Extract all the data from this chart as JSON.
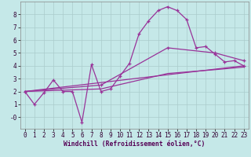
{
  "xlabel": "Windchill (Refroidissement éolien,°C)",
  "background_color": "#c5e8e8",
  "grid_color": "#aacccc",
  "line_color": "#993399",
  "x_ticks": [
    0,
    1,
    2,
    3,
    4,
    5,
    6,
    7,
    8,
    9,
    10,
    11,
    12,
    13,
    14,
    15,
    16,
    17,
    18,
    19,
    20,
    21,
    22,
    23
  ],
  "y_ticks": [
    0,
    1,
    2,
    3,
    4,
    5,
    6,
    7,
    8
  ],
  "ylim": [
    -0.9,
    9.0
  ],
  "xlim": [
    -0.5,
    23.5
  ],
  "series1_x": [
    0,
    1,
    2,
    3,
    4,
    5,
    6,
    7,
    8,
    9,
    10,
    11,
    12,
    13,
    14,
    15,
    16,
    17,
    18,
    19,
    20,
    21,
    22,
    23
  ],
  "series1_y": [
    2.0,
    1.0,
    1.9,
    2.9,
    2.0,
    2.0,
    -0.4,
    4.1,
    2.0,
    2.2,
    3.2,
    4.2,
    6.5,
    7.5,
    8.3,
    8.6,
    8.3,
    7.6,
    5.4,
    5.5,
    4.9,
    4.3,
    4.4,
    4.0
  ],
  "series2_x": [
    0,
    8,
    15,
    20,
    23
  ],
  "series2_y": [
    2.0,
    2.5,
    5.4,
    5.0,
    4.4
  ],
  "series3_x": [
    0,
    23
  ],
  "series3_y": [
    2.0,
    4.0
  ],
  "series4_x": [
    0,
    8,
    15,
    20,
    23
  ],
  "series4_y": [
    2.0,
    2.2,
    3.4,
    3.7,
    3.9
  ]
}
